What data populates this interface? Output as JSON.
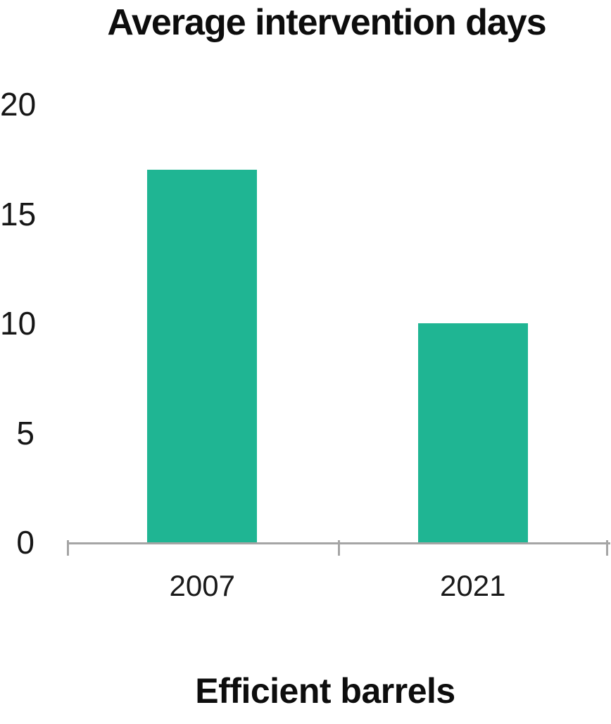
{
  "chart_data": {
    "type": "bar",
    "title": "Average intervention days",
    "xlabel": "Efficient barrels",
    "ylabel": "",
    "categories": [
      "2007",
      "2021"
    ],
    "values": [
      17,
      10
    ],
    "yticks": [
      "0",
      "5",
      "10",
      "15",
      "20"
    ],
    "ylim": [
      0,
      20
    ],
    "grid": false,
    "legend": "none",
    "bar_color": "#1FB593",
    "axis_color": "#a5a5a5",
    "text_color": "#0d0d0d"
  }
}
